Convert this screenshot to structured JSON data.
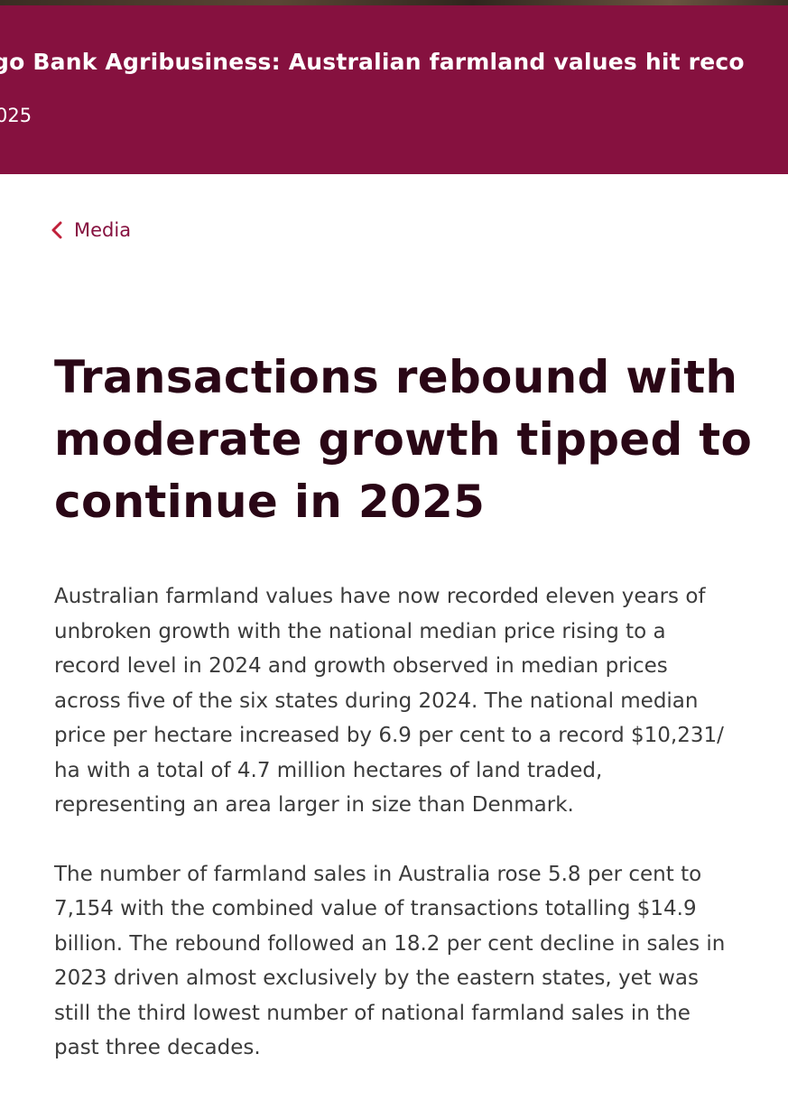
{
  "hero": {
    "title": "go Bank Agribusiness: Australian farmland values hit reco",
    "date": "025"
  },
  "back_link": {
    "label": "Media"
  },
  "article": {
    "title_lines": [
      "Transactions rebound with",
      "moderate growth tipped to",
      "continue in 2025"
    ],
    "paragraph_1_lines": [
      "Australian farmland values have now recorded eleven years of",
      "unbroken growth with the national median price rising to a",
      "record level in 2024 and growth observed in median prices",
      "across five of the six states during 2024. The national median",
      "price per hectare increased by 6.9 per cent to a record $10,231/",
      "ha with a total of 4.7 million hectares of land traded,",
      "representing an area larger in size than Denmark."
    ],
    "paragraph_2_lines": [
      "The number of farmland sales in Australia rose 5.8 per cent to",
      "7,154 with the combined value of transactions totalling $14.9",
      "billion. The rebound followed an 18.2 per cent decline in sales in",
      "2023 driven almost exclusively by the eastern states, yet was",
      "still the third lowest number of national farmland sales in the",
      "past three decades."
    ]
  },
  "colors": {
    "brand": "#86113f",
    "title_text": "#2a0716",
    "body_text": "#3b3b3b",
    "back_chevron": "#c0203a"
  },
  "icons": {
    "back": "chevron-left-icon"
  }
}
